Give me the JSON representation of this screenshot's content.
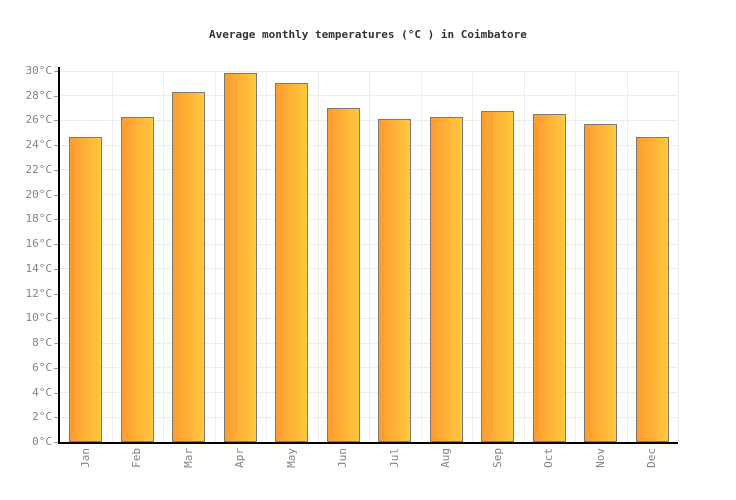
{
  "title": "Average monthly temperatures (°C ) in Coimbatore",
  "chart_data": {
    "type": "bar",
    "title": "Average monthly temperatures (°C ) in Coimbatore",
    "categories": [
      "Jan",
      "Feb",
      "Mar",
      "Apr",
      "May",
      "Jun",
      "Jul",
      "Aug",
      "Sep",
      "Oct",
      "Nov",
      "Dec"
    ],
    "values": [
      24.7,
      26.3,
      28.3,
      29.8,
      29.0,
      27.0,
      26.1,
      26.3,
      26.8,
      26.5,
      25.7,
      24.7
    ],
    "xlabel": "",
    "ylabel": "",
    "ylim": [
      0,
      30
    ],
    "ytick_step": 2,
    "ytick_labels": [
      "0°C",
      "2°C",
      "4°C",
      "6°C",
      "8°C",
      "10°C",
      "12°C",
      "14°C",
      "16°C",
      "18°C",
      "20°C",
      "22°C",
      "24°C",
      "26°C",
      "28°C",
      "30°C"
    ],
    "grid": true,
    "legend_position": "none"
  },
  "colors": {
    "bar_gradient_left": "#ff9a30",
    "bar_gradient_right": "#ffc93e",
    "bar_border": "#7b7b73",
    "axis_line": "#000000",
    "gridline": "#ededed",
    "tick_mark": "#999999",
    "tick_label": "#848484",
    "title_text": "#333333",
    "background": "#ffffff"
  }
}
